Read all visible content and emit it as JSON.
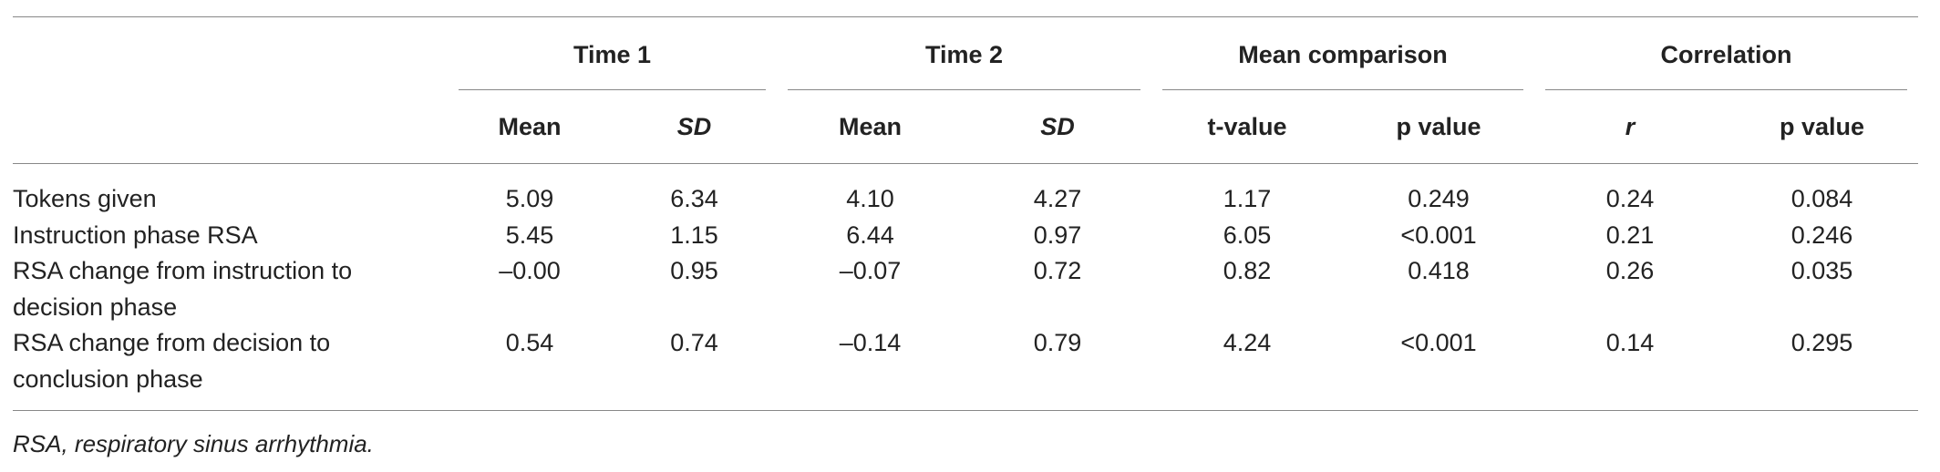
{
  "table": {
    "groups": [
      "Time 1",
      "Time 2",
      "Mean comparison",
      "Correlation"
    ],
    "subheaders": [
      "Mean",
      "SD",
      "Mean",
      "SD",
      "t-value",
      "p value",
      "r",
      "p value"
    ],
    "rows": [
      [
        "Tokens given",
        "5.09",
        "6.34",
        "4.10",
        "4.27",
        "1.17",
        "0.249",
        "0.24",
        "0.084"
      ],
      [
        "Instruction phase RSA",
        "5.45",
        "1.15",
        "6.44",
        "0.97",
        "6.05",
        "<0.001",
        "0.21",
        "0.246"
      ],
      [
        "RSA change from instruction to decision phase",
        "–0.00",
        "0.95",
        "–0.07",
        "0.72",
        "0.82",
        "0.418",
        "0.26",
        "0.035"
      ],
      [
        "RSA change from decision to conclusion phase",
        "0.54",
        "0.74",
        "–0.14",
        "0.79",
        "4.24",
        "<0.001",
        "0.14",
        "0.295"
      ]
    ]
  },
  "footnote": "RSA, respiratory sinus arrhythmia."
}
